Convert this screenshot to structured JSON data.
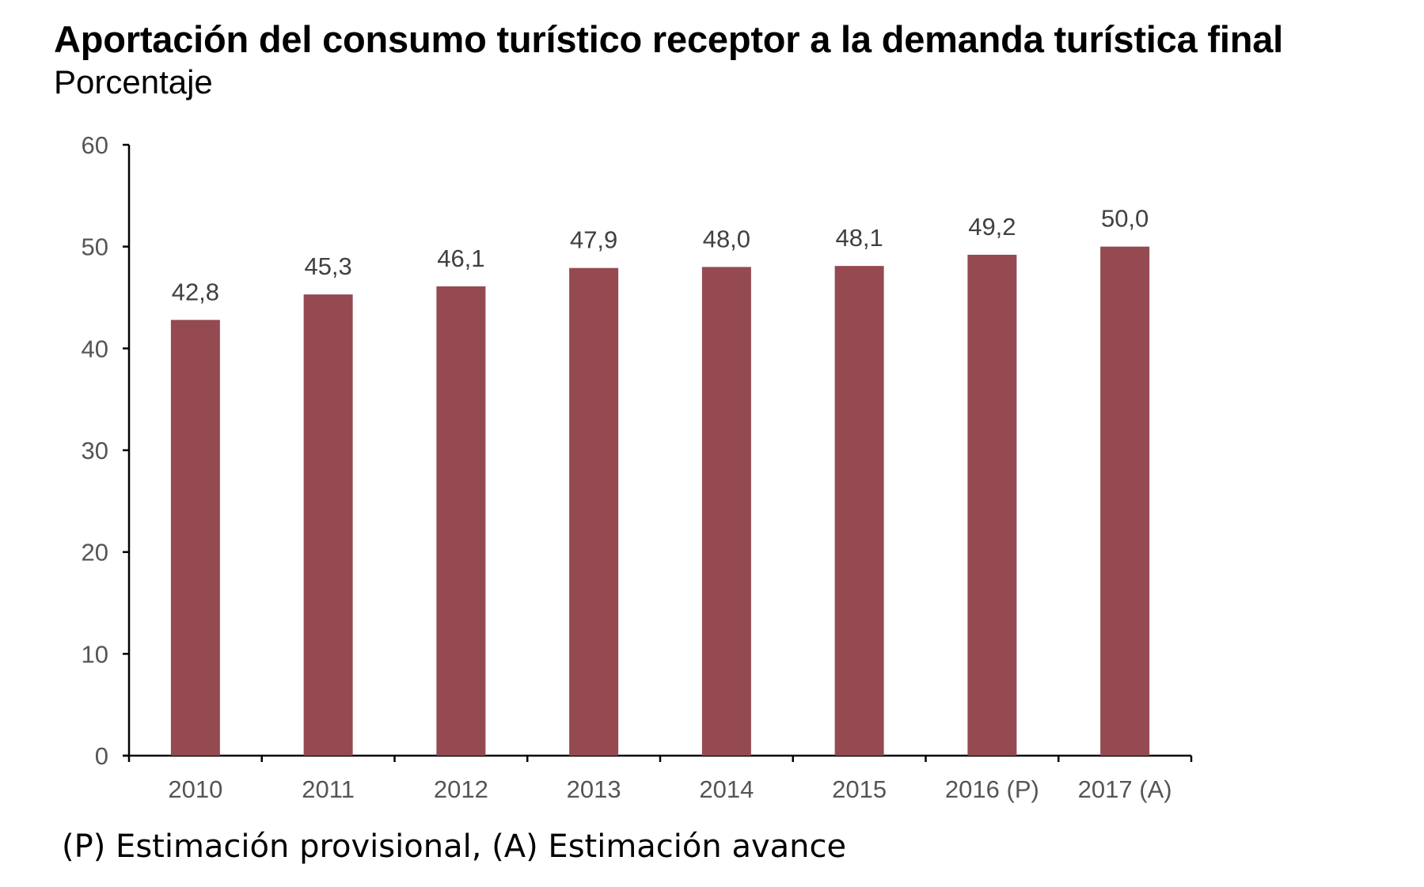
{
  "chart_data": {
    "type": "bar",
    "title": "Aportación del consumo turístico receptor a la demanda turística final",
    "subtitle": "Porcentaje",
    "categories": [
      "2010",
      "2011",
      "2012",
      "2013",
      "2014",
      "2015",
      "2016 (P)",
      "2017 (A)"
    ],
    "values": [
      42.8,
      45.3,
      46.1,
      47.9,
      48.0,
      48.1,
      49.2,
      50.0
    ],
    "data_labels": [
      "42,8",
      "45,3",
      "46,1",
      "47,9",
      "48,0",
      "48,1",
      "49,2",
      "50,0"
    ],
    "ylim": [
      0,
      60
    ],
    "yticks": [
      "0",
      "10",
      "20",
      "30",
      "40",
      "50",
      "60"
    ],
    "xlabel": "",
    "ylabel": "",
    "grid": false,
    "bar_color": "#944a50"
  },
  "footnote": "(P) Estimación provisional, (A) Estimación avance"
}
